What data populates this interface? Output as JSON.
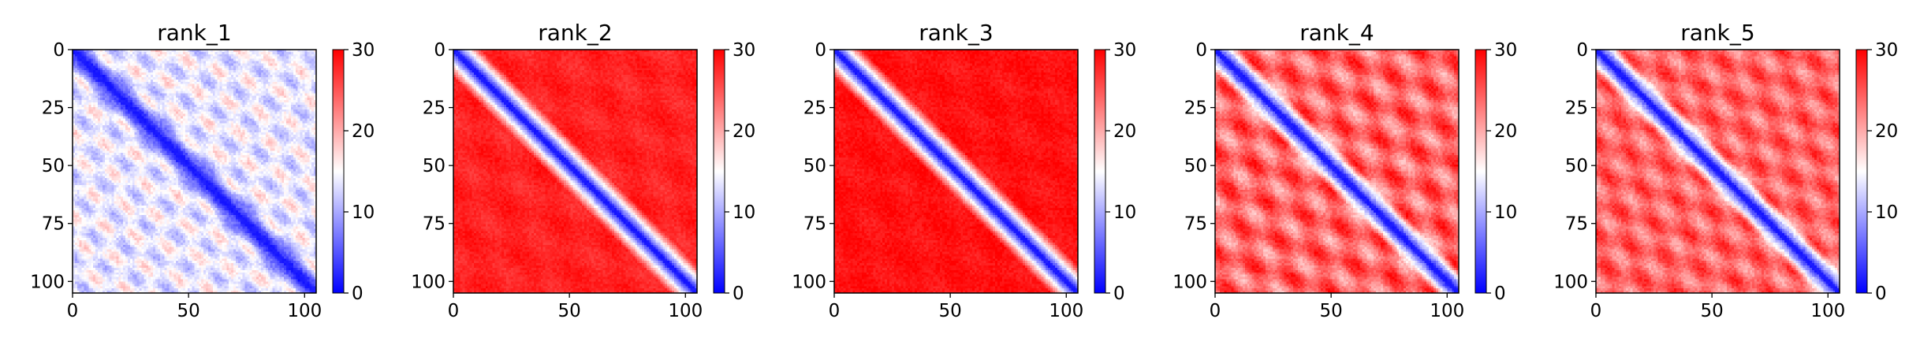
{
  "chart_data": [
    {
      "type": "heatmap",
      "title": "rank_1",
      "matrix_size": 106,
      "xlim": [
        0,
        105
      ],
      "ylim": [
        105,
        0
      ],
      "x_ticks": [
        0,
        50,
        100
      ],
      "y_ticks": [
        0,
        25,
        50,
        75,
        100
      ],
      "colorbar": {
        "min": 0,
        "max": 30,
        "ticks": [
          0,
          10,
          20,
          30
        ]
      },
      "colormap": [
        "#0000ff",
        "#ffffff",
        "#ff0000"
      ],
      "pattern": {
        "base": 14,
        "band_width": 3.5,
        "offset_strength": 8,
        "period": 18,
        "noise": 3
      }
    },
    {
      "type": "heatmap",
      "title": "rank_2",
      "matrix_size": 106,
      "xlim": [
        0,
        105
      ],
      "ylim": [
        105,
        0
      ],
      "x_ticks": [
        0,
        50,
        100
      ],
      "y_ticks": [
        0,
        25,
        50,
        75,
        100
      ],
      "colorbar": {
        "min": 0,
        "max": 30,
        "ticks": [
          0,
          10,
          20,
          30
        ]
      },
      "colormap": [
        "#0000ff",
        "#ffffff",
        "#ff0000"
      ],
      "pattern": {
        "base": 28,
        "band_width": 4,
        "offset_strength": 2,
        "period": 30,
        "noise": 2
      }
    },
    {
      "type": "heatmap",
      "title": "rank_3",
      "matrix_size": 106,
      "xlim": [
        0,
        105
      ],
      "ylim": [
        105,
        0
      ],
      "x_ticks": [
        0,
        50,
        100
      ],
      "y_ticks": [
        0,
        25,
        50,
        75,
        100
      ],
      "colorbar": {
        "min": 0,
        "max": 30,
        "ticks": [
          0,
          10,
          20,
          30
        ]
      },
      "colormap": [
        "#0000ff",
        "#ffffff",
        "#ff0000"
      ],
      "pattern": {
        "base": 29,
        "band_width": 4,
        "offset_strength": 1.5,
        "period": 30,
        "noise": 2
      }
    },
    {
      "type": "heatmap",
      "title": "rank_4",
      "matrix_size": 106,
      "xlim": [
        0,
        105
      ],
      "ylim": [
        105,
        0
      ],
      "x_ticks": [
        0,
        50,
        100
      ],
      "y_ticks": [
        0,
        25,
        50,
        75,
        100
      ],
      "colorbar": {
        "min": 0,
        "max": 30,
        "ticks": [
          0,
          10,
          20,
          30
        ]
      },
      "colormap": [
        "#0000ff",
        "#ffffff",
        "#ff0000"
      ],
      "pattern": {
        "base": 24,
        "band_width": 3.5,
        "offset_strength": 10,
        "period": 22,
        "noise": 3
      }
    },
    {
      "type": "heatmap",
      "title": "rank_5",
      "matrix_size": 106,
      "xlim": [
        0,
        105
      ],
      "ylim": [
        105,
        0
      ],
      "x_ticks": [
        0,
        50,
        100
      ],
      "y_ticks": [
        0,
        25,
        50,
        75,
        100
      ],
      "colorbar": {
        "min": 0,
        "max": 30,
        "ticks": [
          0,
          10,
          20,
          30
        ]
      },
      "colormap": [
        "#0000ff",
        "#ffffff",
        "#ff0000"
      ],
      "pattern": {
        "base": 24,
        "band_width": 3.5,
        "offset_strength": 8,
        "period": 20,
        "noise": 3
      }
    }
  ]
}
